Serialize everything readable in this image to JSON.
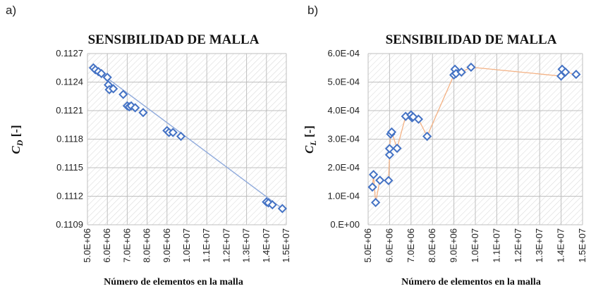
{
  "chart_data": [
    {
      "type": "scatter",
      "panel_label": "a)",
      "title": "SENSIBILIDAD DE MALLA",
      "xlabel": "Número de elementos en la malla",
      "ylabel": "C_D [-]",
      "ylabel_parts": {
        "main": "C",
        "sub": "D",
        "rest": " [-]"
      },
      "xlim": [
        5000000,
        15000000
      ],
      "ylim": [
        0.1109,
        0.1127
      ],
      "x_ticks": [
        "5.0E+06",
        "6.0E+06",
        "7.0E+06",
        "8.0E+06",
        "9.0E+06",
        "1.0E+07",
        "1.1E+07",
        "1.2E+07",
        "1.3E+07",
        "1.4E+07",
        "1.5E+07"
      ],
      "y_ticks": [
        "0.1109",
        "0.1112",
        "0.1115",
        "0.1118",
        "0.1121",
        "0.1124",
        "0.1127"
      ],
      "trendline": {
        "type": "linear",
        "color": "#8faadc",
        "from": [
          5300000,
          0.11255
        ],
        "to": [
          14800000,
          0.11107
        ]
      },
      "series": [
        {
          "name": "C_D",
          "marker": "diamond",
          "color": "#4472c4",
          "x": [
            5300000,
            5400000,
            5550000,
            5700000,
            6000000,
            6050000,
            6100000,
            6300000,
            6800000,
            7000000,
            7100000,
            7200000,
            7400000,
            7800000,
            9000000,
            9100000,
            9300000,
            9700000,
            14000000,
            14100000,
            14300000,
            14800000
          ],
          "y": [
            0.11255,
            0.11253,
            0.11251,
            0.11249,
            0.11245,
            0.11237,
            0.11232,
            0.11233,
            0.11227,
            0.11215,
            0.11214,
            0.11215,
            0.11213,
            0.11208,
            0.11189,
            0.11187,
            0.11187,
            0.11183,
            0.11114,
            0.11113,
            0.11111,
            0.11107
          ]
        }
      ]
    },
    {
      "type": "line",
      "panel_label": "b)",
      "title": "SENSIBILIDAD DE MALLA",
      "xlabel": "Número de elementos en la malla",
      "ylabel": "C_L [-]",
      "ylabel_parts": {
        "main": "C",
        "sub": "L",
        "rest": " [-]"
      },
      "xlim": [
        5000000,
        15000000
      ],
      "ylim": [
        0,
        0.0006
      ],
      "x_ticks": [
        "5.0E+06",
        "6.0E+06",
        "7.0E+06",
        "8.0E+06",
        "9.0E+06",
        "1.0E+07",
        "1.1E+07",
        "1.2E+07",
        "1.3E+07",
        "1.4E+07",
        "1.5E+07"
      ],
      "y_ticks": [
        "0.E+00",
        "1.0E-04",
        "2.0E-04",
        "3.0E-04",
        "4.0E-04",
        "5.0E-04",
        "6.0E-04"
      ],
      "series": [
        {
          "name": "C_L",
          "marker": "diamond",
          "color": "#4472c4",
          "line_color": "#f4b183",
          "x": [
            5200000,
            5250000,
            5350000,
            5550000,
            5950000,
            6000000,
            6000000,
            6050000,
            6100000,
            6350000,
            6750000,
            7000000,
            7050000,
            7100000,
            7350000,
            7750000,
            9000000,
            9050000,
            9100000,
            9350000,
            9800000,
            14000000,
            14050000,
            14200000,
            14700000
          ],
          "y": [
            0.000132,
            0.000176,
            7.8e-05,
            0.000156,
            0.000155,
            0.000245,
            0.000267,
            0.000318,
            0.000325,
            0.000268,
            0.00038,
            0.000385,
            0.000375,
            0.000378,
            0.00037,
            0.00031,
            0.000525,
            0.000545,
            0.00053,
            0.000535,
            0.000552,
            0.000521,
            0.000545,
            0.000535,
            0.000527
          ]
        }
      ]
    }
  ]
}
